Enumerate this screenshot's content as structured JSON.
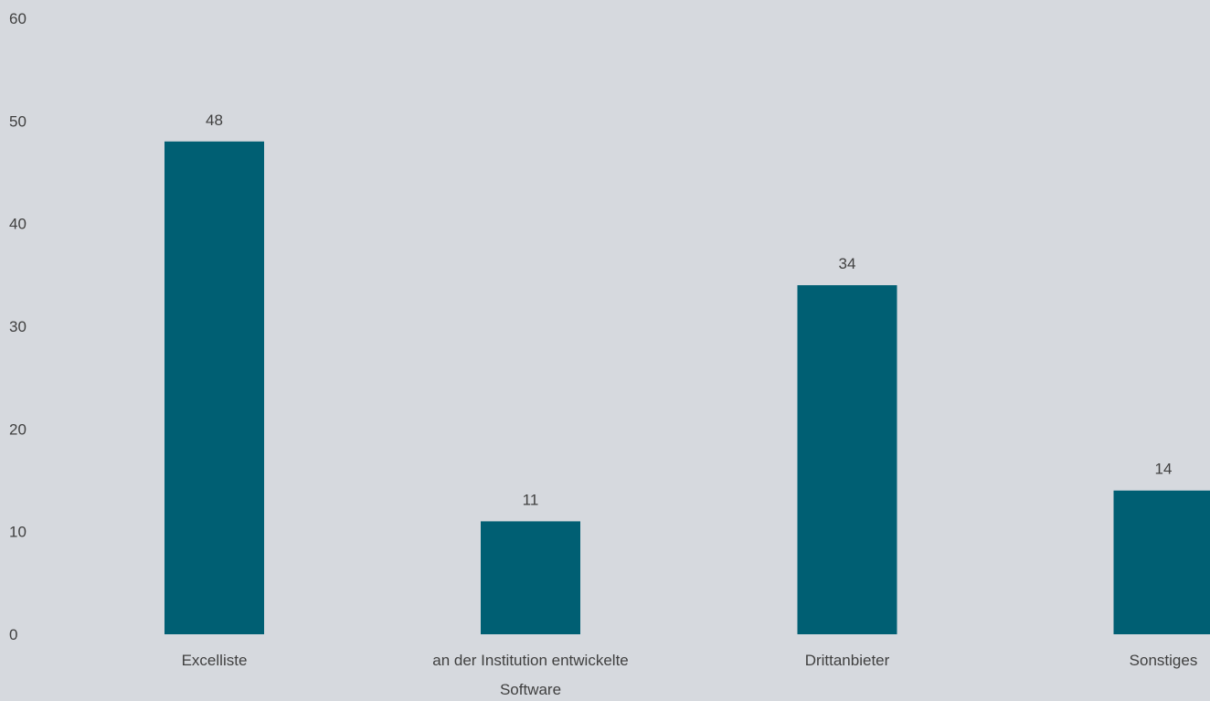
{
  "chart_data": {
    "type": "bar",
    "categories": [
      "Excelliste",
      "an der Institution entwickelte Software",
      "Drittanbieter",
      "Sonstiges"
    ],
    "category_label_lines": [
      [
        "Excelliste"
      ],
      [
        "an der Institution entwickelte",
        "Software"
      ],
      [
        "Drittanbieter"
      ],
      [
        "Sonstiges"
      ]
    ],
    "values": [
      48,
      11,
      34,
      14
    ],
    "data_labels": [
      "48",
      "11",
      "34",
      "14"
    ],
    "y_ticks": [
      0,
      10,
      20,
      30,
      40,
      50,
      60
    ],
    "y_tick_labels": [
      "0",
      "10",
      "20",
      "30",
      "40",
      "50",
      "60"
    ],
    "ylim": [
      0,
      60
    ],
    "grid": false,
    "legend": false,
    "title": "",
    "xlabel": "",
    "ylabel": "",
    "colors": {
      "bar": "#005f73",
      "background": "#d6d9de",
      "text": "#404040"
    }
  }
}
